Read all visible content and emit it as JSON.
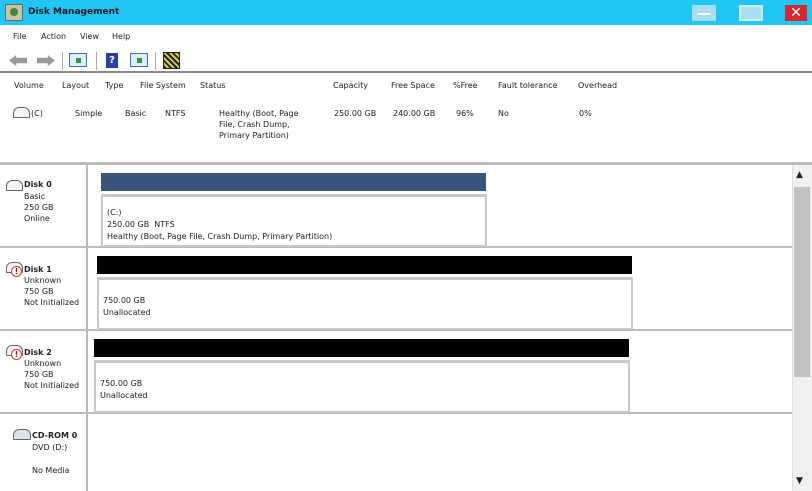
{
  "window": {
    "title": "Disk Management",
    "close_glyph": "✕"
  },
  "menu": [
    "File",
    "Action",
    "View",
    "Help"
  ],
  "toolbar": {
    "help_glyph": "?",
    "icons": [
      "back-icon",
      "forward-icon",
      "console-tree-icon",
      "help-icon",
      "action-pane-icon",
      "properties-icon"
    ]
  },
  "volume_list": {
    "headers": [
      "Volume",
      "Layout",
      "Type",
      "File System",
      "Status",
      "Capacity",
      "Free Space",
      "%Free",
      "Fault tolerance",
      "Overhead"
    ],
    "rows": [
      {
        "volume": "(C)",
        "layout": "Simple",
        "type": "Basic",
        "fs": "NTFS",
        "status": "Healthy (Boot, Page File, Crash Dump, Primary Partition)",
        "capacity": "250.00 GB",
        "free": "240.00 GB",
        "pct_free": "96%",
        "fault": "No",
        "overhead": "0%"
      }
    ]
  },
  "disks": [
    {
      "name": "Disk 0",
      "type": "Basic",
      "size": "250 GB",
      "state": "Online",
      "partition": {
        "label": "(C:)",
        "size_fs": "250.00 GB  NTFS",
        "status": "Healthy (Boot, Page File, Crash Dump, Primary Partition)"
      },
      "bar_color": "#3b5479"
    },
    {
      "name": "Disk 1",
      "type": "Unknown",
      "size": "750 GB",
      "state": "Not Initialized",
      "partition": {
        "size": "750.00 GB",
        "status": "Unallocated"
      },
      "bar_color": "#000000"
    },
    {
      "name": "Disk 2",
      "type": "Unknown",
      "size": "750 GB",
      "state": "Not Initialized",
      "partition": {
        "size": "750.00 GB",
        "status": "Unallocated"
      },
      "bar_color": "#000000"
    },
    {
      "name": "CD-ROM 0",
      "type": "DVD (D:)",
      "state": "No Media"
    }
  ],
  "warn_glyph": "!",
  "scroll": {
    "up": "▲",
    "down": "▼"
  }
}
